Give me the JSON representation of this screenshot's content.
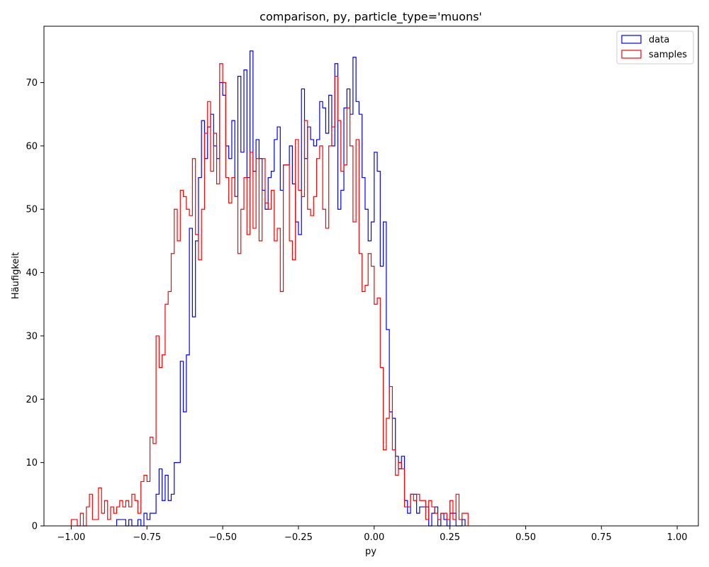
{
  "chart_data": {
    "type": "histogram",
    "title": "comparison, py, particle_type='muons'",
    "xlabel": "py",
    "ylabel": "Häufigkeit",
    "xlim": [
      -1.09,
      1.07
    ],
    "ylim": [
      0,
      78.9
    ],
    "bins": {
      "start": -1.0,
      "width": 0.01
    },
    "xticks": [
      -1.0,
      -0.75,
      -0.5,
      -0.25,
      0.0,
      0.25,
      0.5,
      0.75,
      1.0
    ],
    "xtick_labels": [
      "−1.00",
      "−0.75",
      "−0.50",
      "−0.25",
      "0.00",
      "0.25",
      "0.50",
      "0.75",
      "1.00"
    ],
    "yticks": [
      0,
      10,
      20,
      30,
      40,
      50,
      60,
      70
    ],
    "ytick_labels": [
      "0",
      "10",
      "20",
      "30",
      "40",
      "50",
      "60",
      "70"
    ],
    "legend": {
      "placement": "top-right",
      "entries": [
        {
          "label": "data",
          "color": "#0000ff"
        },
        {
          "label": "samples",
          "color": "#ff0000"
        }
      ]
    },
    "series": [
      {
        "name": "data",
        "color": "#0000ff",
        "start": -0.85,
        "counts": [
          1,
          1,
          1,
          0,
          1,
          0,
          0,
          1,
          0,
          2,
          1,
          2,
          2,
          5,
          9,
          4,
          8,
          4,
          5,
          10,
          10,
          26,
          18,
          27,
          47,
          33,
          45,
          55,
          64,
          58,
          63,
          65,
          60,
          58,
          70,
          68,
          60,
          58,
          64,
          52,
          71,
          59,
          72,
          55,
          75,
          56,
          61,
          58,
          53,
          50,
          55,
          56,
          61,
          63,
          53,
          57,
          57,
          60,
          54,
          48,
          46,
          69,
          58,
          63,
          61,
          60,
          61,
          67,
          66,
          62,
          68,
          60,
          73,
          50,
          53,
          66,
          69,
          65,
          74,
          67,
          65,
          55,
          50,
          45,
          48,
          59,
          56,
          41,
          48,
          31,
          18,
          17,
          11,
          9,
          11,
          4,
          2,
          5,
          5,
          2,
          3,
          3,
          3,
          0,
          2,
          3,
          0,
          2,
          1,
          0,
          2,
          2,
          0,
          0,
          1
        ]
      },
      {
        "name": "samples",
        "color": "#ff0000",
        "start": -1.0,
        "counts": [
          1,
          1,
          0,
          2,
          0,
          3,
          5,
          1,
          1,
          6,
          2,
          4,
          1,
          3,
          2,
          3,
          4,
          3,
          4,
          3,
          5,
          4,
          2,
          7,
          8,
          7,
          14,
          13,
          30,
          25,
          27,
          35,
          37,
          43,
          50,
          45,
          53,
          52,
          50,
          49,
          58,
          46,
          42,
          50,
          62,
          67,
          56,
          62,
          54,
          73,
          70,
          55,
          51,
          55,
          52,
          43,
          50,
          55,
          46,
          59,
          47,
          58,
          45,
          58,
          51,
          50,
          53,
          45,
          47,
          37,
          57,
          57,
          45,
          42,
          61,
          53,
          52,
          64,
          50,
          49,
          52,
          58,
          60,
          50,
          47,
          60,
          63,
          71,
          64,
          56,
          57,
          66,
          60,
          48,
          61,
          43,
          37,
          38,
          43,
          41,
          35,
          36,
          25,
          12,
          17,
          22,
          12,
          8,
          10,
          9,
          3,
          3,
          5,
          4,
          5,
          4,
          4,
          1,
          4,
          3,
          2,
          1,
          2,
          2,
          1,
          4,
          1,
          5,
          1,
          2,
          2
        ]
      }
    ]
  }
}
